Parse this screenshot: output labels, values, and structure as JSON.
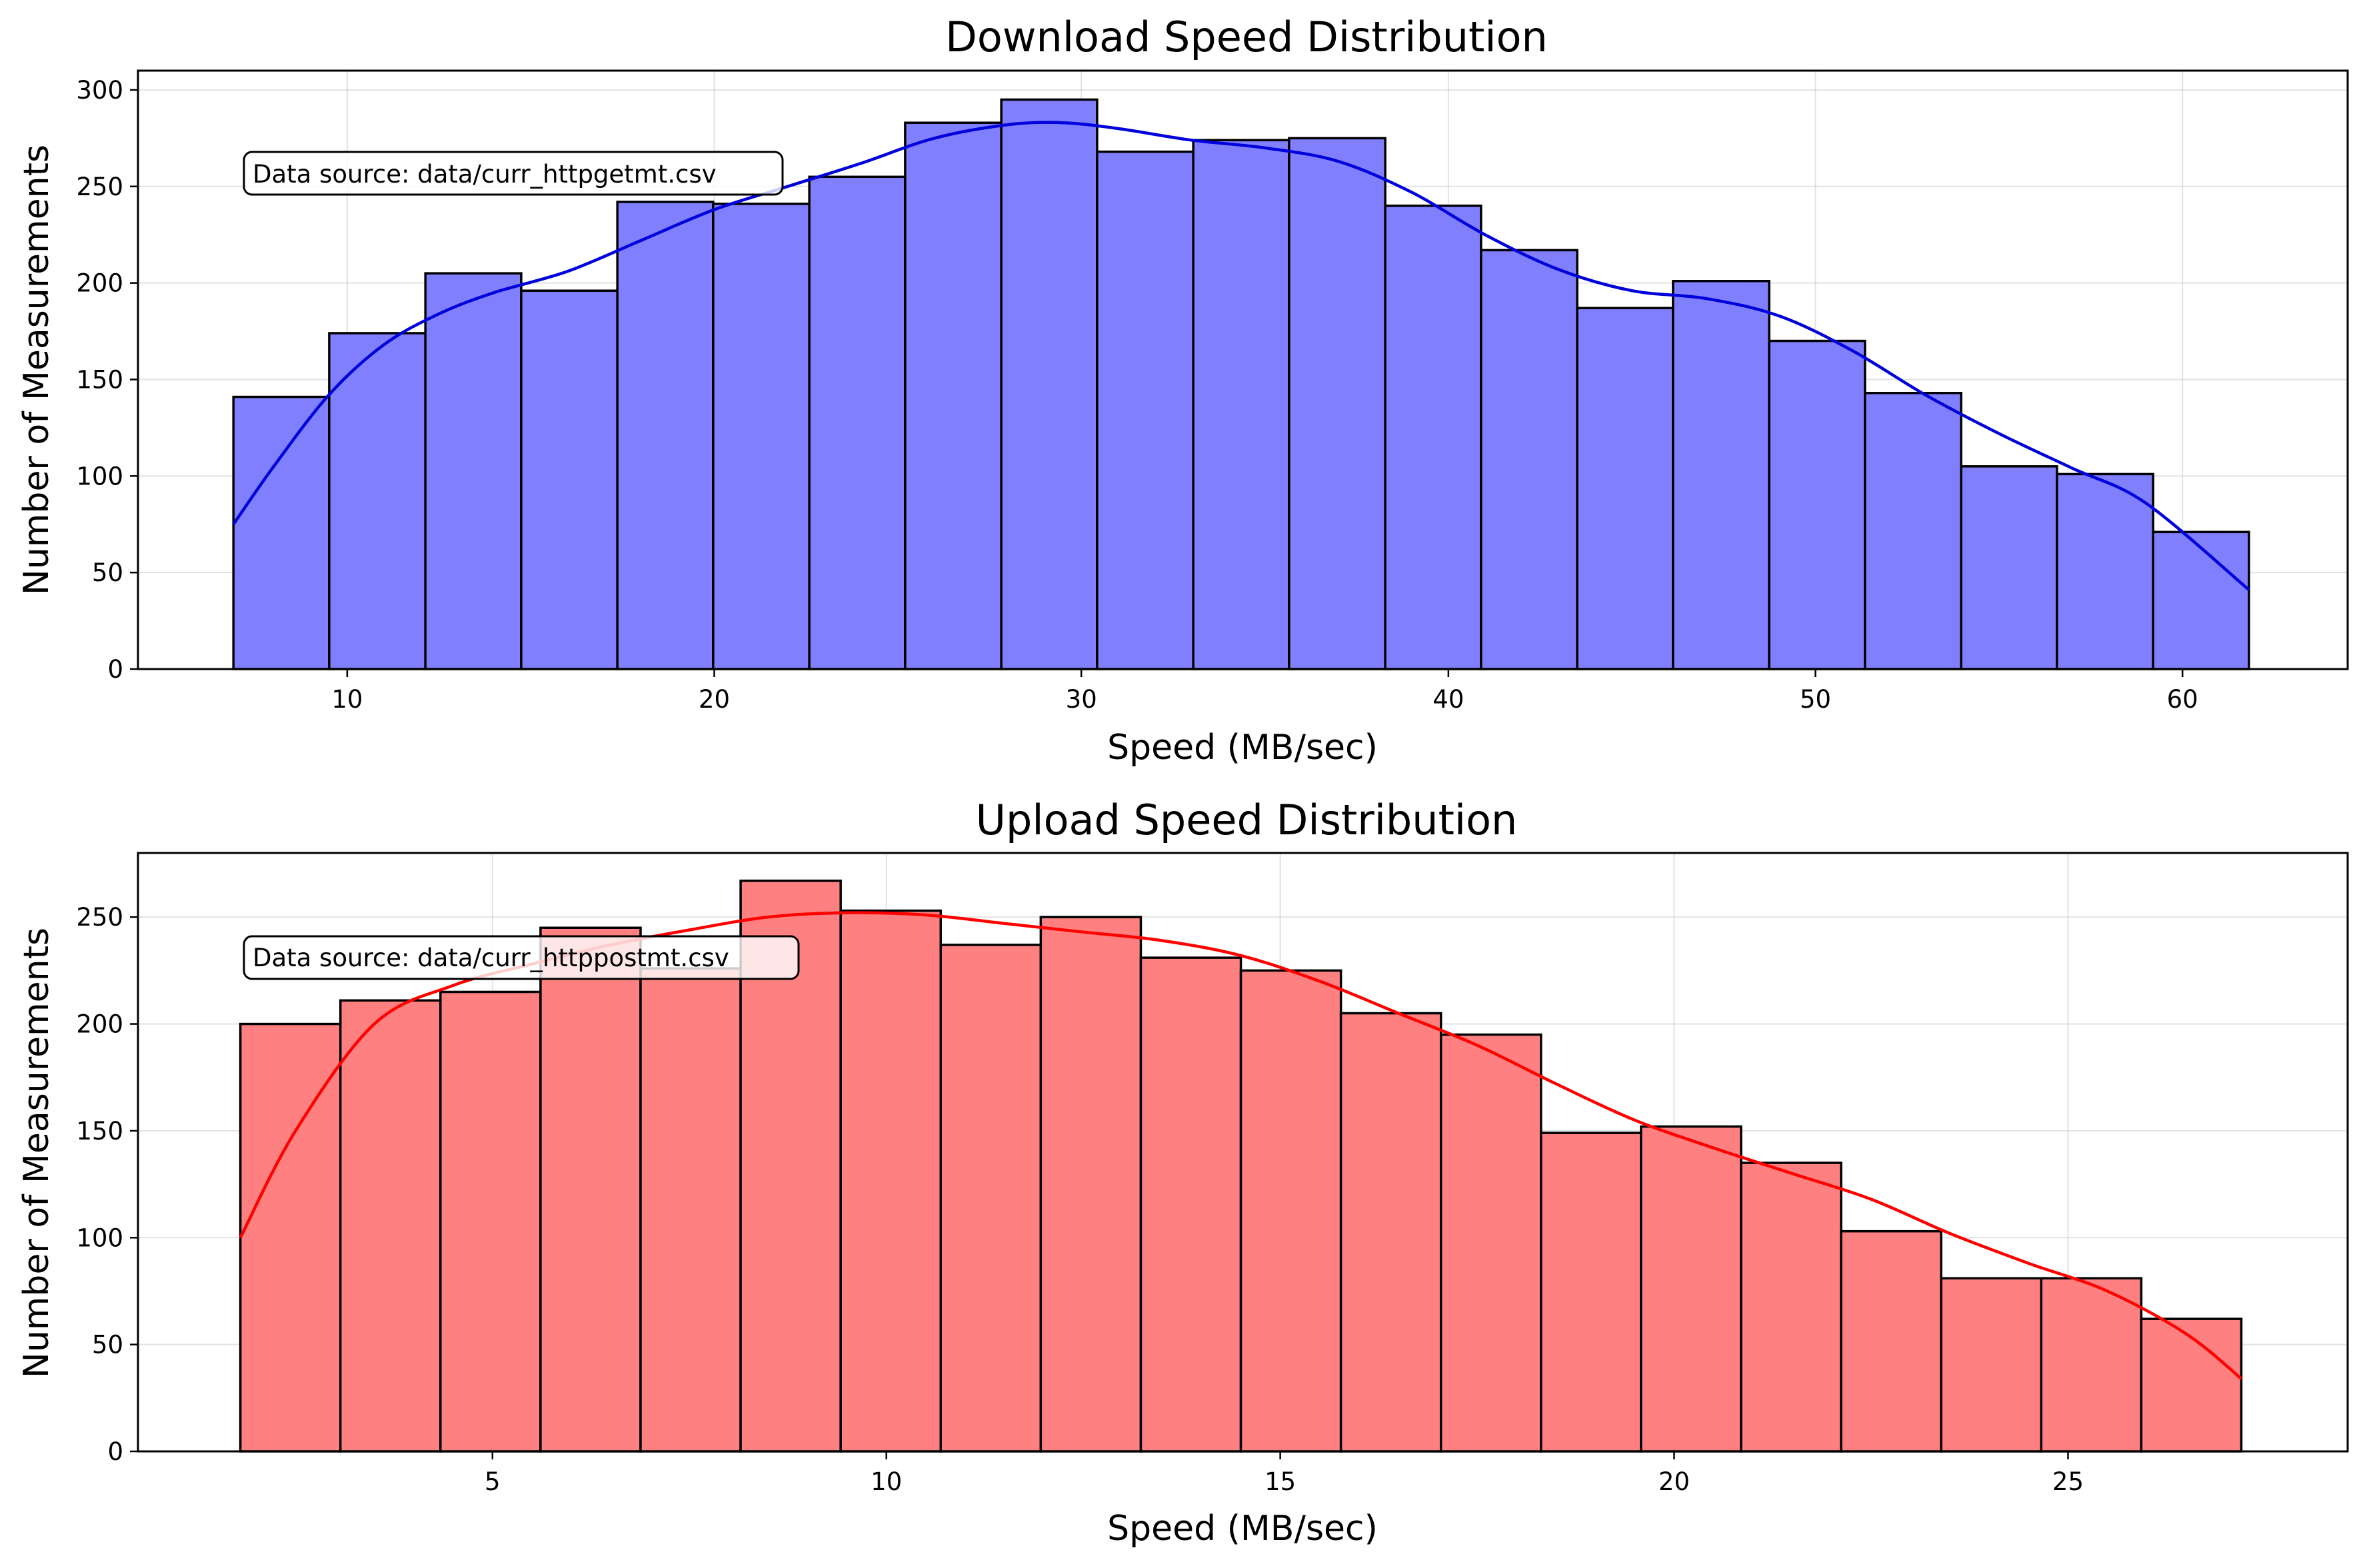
{
  "figure": {
    "background": "#ffffff"
  },
  "chart_data": [
    {
      "type": "bar",
      "title": "Download Speed Distribution",
      "xlabel": "Speed (MB/sec)",
      "ylabel": "Number of Measurements",
      "annotation": "Data source: data/curr_httpgetmt.csv",
      "bar_color": "#8080ff",
      "line_color": "#0000dd",
      "edge_color": "#000000",
      "grid": true,
      "xlim": [
        4.3,
        64.5
      ],
      "ylim": [
        0,
        310
      ],
      "xticks": [
        10,
        20,
        30,
        40,
        50,
        60
      ],
      "yticks": [
        0,
        50,
        100,
        150,
        200,
        250,
        300
      ],
      "bin_edges": [
        6.9,
        9.51,
        12.13,
        14.74,
        17.36,
        19.97,
        22.59,
        25.2,
        27.82,
        30.43,
        33.05,
        35.66,
        38.28,
        40.89,
        43.51,
        46.12,
        48.74,
        51.35,
        53.97,
        56.58,
        59.2,
        61.81
      ],
      "values": [
        141,
        174,
        205,
        196,
        242,
        241,
        255,
        283,
        295,
        268,
        274,
        275,
        240,
        217,
        187,
        201,
        170,
        143,
        105,
        101,
        71
      ],
      "kde": {
        "x": [
          6.9,
          8.0,
          9.5,
          11.0,
          12.5,
          14.0,
          16.0,
          18.0,
          20.0,
          22.0,
          24.0,
          26.0,
          28.0,
          29.5,
          31.0,
          33.0,
          35.0,
          37.0,
          39.0,
          41.0,
          43.0,
          45.0,
          47.0,
          49.0,
          51.0,
          53.0,
          55.0,
          57.0,
          59.0,
          61.81
        ],
        "y": [
          75,
          105,
          142,
          168,
          184,
          195,
          206,
          222,
          238,
          250,
          262,
          275,
          282,
          283,
          280,
          274,
          270,
          263,
          247,
          225,
          207,
          196,
          192,
          183,
          165,
          142,
          122,
          104,
          86,
          41
        ]
      }
    },
    {
      "type": "bar",
      "title": "Upload Speed Distribution",
      "xlabel": "Speed (MB/sec)",
      "ylabel": "Number of Measurements",
      "annotation": "Data source: data/curr_httppostmt.csv",
      "bar_color": "#ff8080",
      "line_color": "#ff0000",
      "edge_color": "#000000",
      "grid": true,
      "xlim": [
        0.5,
        28.55
      ],
      "ylim": [
        0,
        280
      ],
      "xticks": [
        5,
        10,
        15,
        20,
        25
      ],
      "yticks": [
        0,
        50,
        100,
        150,
        200,
        250
      ],
      "bin_edges": [
        1.8,
        3.07,
        4.34,
        5.61,
        6.88,
        8.15,
        9.42,
        10.69,
        11.96,
        13.23,
        14.5,
        15.77,
        17.04,
        18.31,
        19.58,
        20.85,
        22.12,
        23.39,
        24.66,
        25.93,
        27.2
      ],
      "values": [
        200,
        211,
        215,
        245,
        226,
        267,
        253,
        237,
        250,
        231,
        225,
        205,
        195,
        149,
        152,
        135,
        103,
        81,
        81,
        62
      ],
      "kde": {
        "x": [
          1.8,
          2.5,
          3.5,
          4.5,
          5.5,
          6.5,
          7.5,
          8.5,
          9.5,
          10.5,
          11.5,
          12.5,
          13.5,
          14.5,
          15.5,
          16.5,
          17.5,
          18.5,
          19.5,
          20.5,
          21.5,
          22.5,
          23.5,
          24.5,
          25.5,
          26.5,
          27.2
        ],
        "y": [
          100,
          150,
          200,
          218,
          228,
          237,
          244,
          250,
          252,
          251,
          247,
          243,
          239,
          232,
          220,
          205,
          190,
          172,
          155,
          142,
          130,
          118,
          102,
          88,
          75,
          55,
          34
        ]
      }
    }
  ]
}
